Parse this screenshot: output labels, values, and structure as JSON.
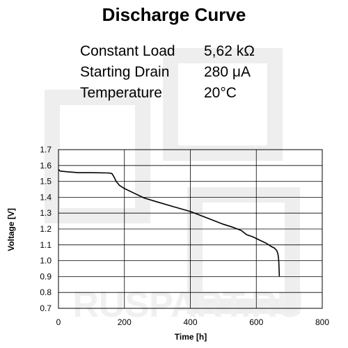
{
  "header": {
    "title": "Discharge Curve",
    "params": [
      {
        "label": "Constant Load",
        "value": "5,62 kΩ"
      },
      {
        "label": "Starting Drain",
        "value": "280 μA"
      },
      {
        "label": "Temperature",
        "value": "20°C"
      }
    ]
  },
  "watermark_text": "RUSPART.RU",
  "colors": {
    "line": "#000000",
    "grid": "#000000",
    "watermark": "#eeeeee"
  },
  "chart_data": {
    "type": "line",
    "title": "Discharge Curve",
    "xlabel": "Time [h]",
    "ylabel": "Voltage [V]",
    "xlim": [
      0,
      800
    ],
    "ylim": [
      0.7,
      1.7
    ],
    "xticks": [
      "0",
      "200",
      "400",
      "600",
      "800"
    ],
    "yticks": [
      "0.7",
      "0.8",
      "0.9",
      "1.0",
      "1.1",
      "1.2",
      "1.3",
      "1.4",
      "1.5",
      "1.6",
      "1.7"
    ],
    "grid": true,
    "series": [
      {
        "x": [
          0,
          5,
          30,
          60,
          100,
          150,
          162,
          168,
          175,
          185,
          200,
          230,
          260,
          300,
          350,
          400,
          450,
          500,
          530,
          555,
          570,
          590,
          610,
          630,
          645,
          655,
          662,
          666,
          668,
          670
        ],
        "y": [
          1.575,
          1.565,
          1.56,
          1.555,
          1.555,
          1.553,
          1.55,
          1.53,
          1.5,
          1.475,
          1.455,
          1.425,
          1.395,
          1.37,
          1.34,
          1.31,
          1.27,
          1.23,
          1.21,
          1.19,
          1.165,
          1.15,
          1.13,
          1.11,
          1.09,
          1.08,
          1.065,
          1.04,
          1.0,
          0.9
        ]
      }
    ]
  }
}
